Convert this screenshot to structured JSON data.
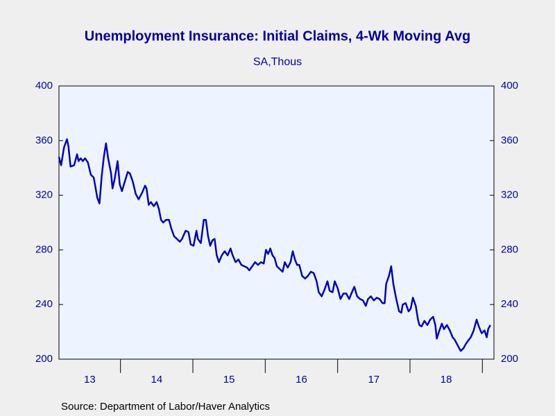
{
  "chart_data": {
    "type": "line",
    "title": "Unemployment Insurance: Initial Claims, 4-Wk Moving Avg",
    "subtitle": "SA,Thous",
    "source": "Source:  Department of Labor/Haver Analytics",
    "categories": [
      "13",
      "14",
      "15",
      "16",
      "17",
      "18"
    ],
    "xlim": [
      2013.15,
      2019.16
    ],
    "xticks": [
      2014,
      2015,
      2016,
      2017,
      2018,
      2019
    ],
    "ylim": [
      200,
      400
    ],
    "yticks": [
      200,
      240,
      280,
      320,
      360,
      400
    ],
    "y2lim": [
      200,
      400
    ],
    "y2ticks": [
      200,
      240,
      280,
      320,
      360,
      400
    ],
    "series": [
      {
        "color": "#0000c0",
        "x": [
          2013.15,
          2013.18,
          2013.22,
          2013.26,
          2013.28,
          2013.31,
          2013.36,
          2013.4,
          2013.42,
          2013.45,
          2013.48,
          2013.51,
          2013.55,
          2013.59,
          2013.63,
          2013.65,
          2013.68,
          2013.71,
          2013.74,
          2013.77,
          2013.8,
          2013.83,
          2013.87,
          2013.89,
          2013.92,
          2013.96,
          2013.99,
          2014.02,
          2014.06,
          2014.1,
          2014.13,
          2014.17,
          2014.21,
          2014.25,
          2014.3,
          2014.34,
          2014.36,
          2014.39,
          2014.42,
          2014.46,
          2014.5,
          2014.53,
          2014.56,
          2014.59,
          2014.63,
          2014.67,
          2014.7,
          2014.74,
          2014.78,
          2014.82,
          2014.85,
          2014.9,
          2014.94,
          2014.97,
          2015.01,
          2015.05,
          2015.07,
          2015.11,
          2015.15,
          2015.18,
          2015.21,
          2015.24,
          2015.27,
          2015.3,
          2015.33,
          2015.36,
          2015.4,
          2015.44,
          2015.48,
          2015.52,
          2015.55,
          2015.59,
          2015.63,
          2015.67,
          2015.71,
          2015.75,
          2015.78,
          2015.82,
          2015.86,
          2015.9,
          2015.94,
          2015.98,
          2016.01,
          2016.04,
          2016.07,
          2016.1,
          2016.13,
          2016.16,
          2016.2,
          2016.24,
          2016.27,
          2016.31,
          2016.35,
          2016.38,
          2016.41,
          2016.44,
          2016.47,
          2016.51,
          2016.55,
          2016.59,
          2016.63,
          2016.67,
          2016.71,
          2016.74,
          2016.78,
          2016.82,
          2016.86,
          2016.89,
          2016.93,
          2016.96,
          2017.0,
          2017.04,
          2017.08,
          2017.12,
          2017.16,
          2017.19,
          2017.23,
          2017.27,
          2017.31,
          2017.35,
          2017.39,
          2017.42,
          2017.46,
          2017.5,
          2017.54,
          2017.58,
          2017.62,
          2017.65,
          2017.67,
          2017.71,
          2017.74,
          2017.77,
          2017.81,
          2017.85,
          2017.88,
          2017.9,
          2017.94,
          2017.98,
          2018.01,
          2018.04,
          2018.08,
          2018.11,
          2018.13,
          2018.16,
          2018.2,
          2018.24,
          2018.28,
          2018.32,
          2018.35,
          2018.37,
          2018.4,
          2018.44,
          2018.47,
          2018.51,
          2018.55,
          2018.59,
          2018.62,
          2018.66,
          2018.7,
          2018.74,
          2018.77,
          2018.81,
          2018.84,
          2018.88,
          2018.92,
          2018.95,
          2018.99,
          2019.03,
          2019.06,
          2019.08,
          2019.11
        ],
        "values": [
          348,
          342,
          355,
          361,
          356,
          341,
          342,
          350,
          345,
          347,
          345,
          347,
          344,
          335,
          333,
          327,
          318,
          314,
          334,
          348,
          358,
          347,
          336,
          325,
          332,
          345,
          328,
          323,
          330,
          337,
          336,
          330,
          321,
          317,
          322,
          327,
          325,
          313,
          315,
          312,
          315,
          310,
          302,
          300,
          302,
          302,
          296,
          290,
          288,
          286,
          288,
          294,
          293,
          284,
          283,
          294,
          288,
          285,
          302,
          302,
          290,
          283,
          287,
          288,
          276,
          271,
          276,
          279,
          276,
          281,
          276,
          271,
          273,
          269,
          268,
          267,
          265,
          268,
          271,
          269,
          271,
          270,
          280,
          277,
          281,
          276,
          274,
          268,
          266,
          264,
          271,
          267,
          271,
          279,
          273,
          269,
          269,
          261,
          259,
          261,
          264,
          263,
          257,
          249,
          246,
          251,
          257,
          250,
          249,
          257,
          252,
          244,
          248,
          248,
          244,
          248,
          253,
          246,
          244,
          243,
          239,
          244,
          246,
          243,
          245,
          244,
          241,
          241,
          255,
          261,
          268,
          255,
          244,
          235,
          234,
          240,
          241,
          235,
          237,
          245,
          239,
          229,
          225,
          224,
          228,
          225,
          229,
          231,
          225,
          215,
          220,
          226,
          222,
          225,
          221,
          216,
          214,
          210,
          206,
          208,
          211,
          214,
          216,
          221,
          229,
          224,
          219,
          221,
          216,
          222,
          225
        ]
      }
    ]
  }
}
